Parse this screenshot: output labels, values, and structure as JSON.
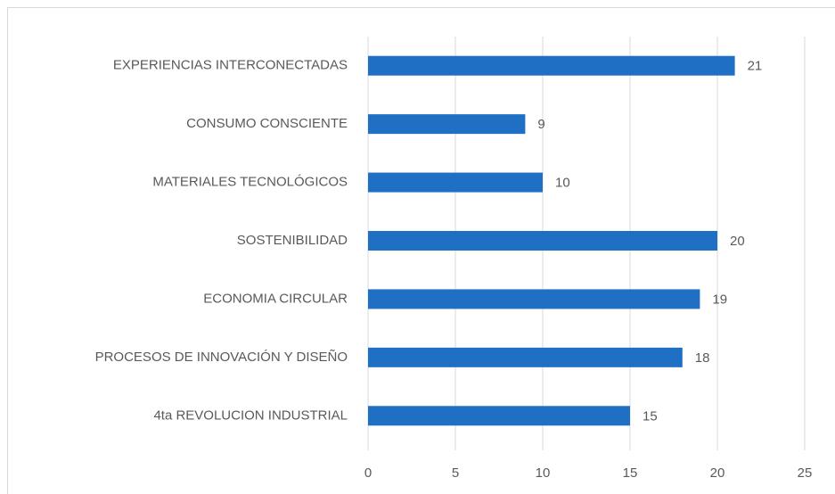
{
  "chart_data": {
    "type": "bar",
    "orientation": "horizontal",
    "categories": [
      "EXPERIENCIAS INTERCONECTADAS",
      "CONSUMO CONSCIENTE",
      "MATERIALES TECNOLÓGICOS",
      "SOSTENIBILIDAD",
      "ECONOMIA CIRCULAR",
      "PROCESOS DE INNOVACIÓN Y DISEÑO",
      "4ta REVOLUCION INDUSTRIAL"
    ],
    "values": [
      21,
      9,
      10,
      20,
      19,
      18,
      15
    ],
    "color": "#1f6fc5",
    "xlim": [
      0,
      25
    ],
    "xticks": [
      0,
      5,
      10,
      15,
      20,
      25
    ],
    "grid": true
  }
}
